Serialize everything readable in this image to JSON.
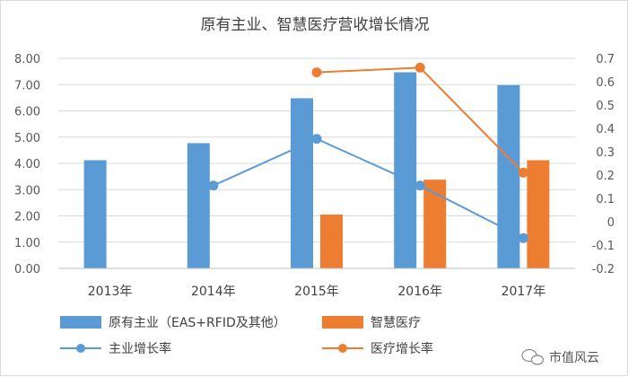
{
  "chart_data": {
    "type": "bar+line",
    "title": "原有主业、智慧医疗营收增长情况",
    "categories": [
      "2013年",
      "2014年",
      "2015年",
      "2016年",
      "2017年"
    ],
    "y_left": {
      "min": 0,
      "max": 8,
      "step": 1,
      "tick_labels": [
        "0.00",
        "1.00",
        "2.00",
        "3.00",
        "4.00",
        "5.00",
        "6.00",
        "7.00",
        "8.00"
      ]
    },
    "y_right": {
      "min": -0.2,
      "max": 0.7,
      "step": 0.1,
      "tick_labels": [
        "-0.2",
        "-0.1",
        "0",
        "0.1",
        "0.2",
        "0.3",
        "0.4",
        "0.5",
        "0.6",
        "0.7"
      ]
    },
    "series": [
      {
        "name": "原有主业（EAS+RFID及其他）",
        "kind": "bar",
        "axis": "left",
        "color": "#5b9bd5",
        "values": [
          4.12,
          4.77,
          6.48,
          7.47,
          6.98
        ]
      },
      {
        "name": "智慧医疗",
        "kind": "bar",
        "axis": "left",
        "color": "#ed7d31",
        "values": [
          null,
          null,
          2.05,
          3.38,
          4.12
        ]
      },
      {
        "name": "主业增长率",
        "kind": "line",
        "axis": "right",
        "color": "#5b9bd5",
        "values": [
          null,
          0.155,
          0.355,
          0.155,
          -0.07
        ]
      },
      {
        "name": "医疗增长率",
        "kind": "line",
        "axis": "right",
        "color": "#ed7d31",
        "values": [
          null,
          null,
          0.64,
          0.66,
          0.21
        ]
      }
    ],
    "grid": true,
    "legend_position": "bottom"
  },
  "watermark": {
    "text": "市值风云",
    "icon": "wechat-icon"
  }
}
